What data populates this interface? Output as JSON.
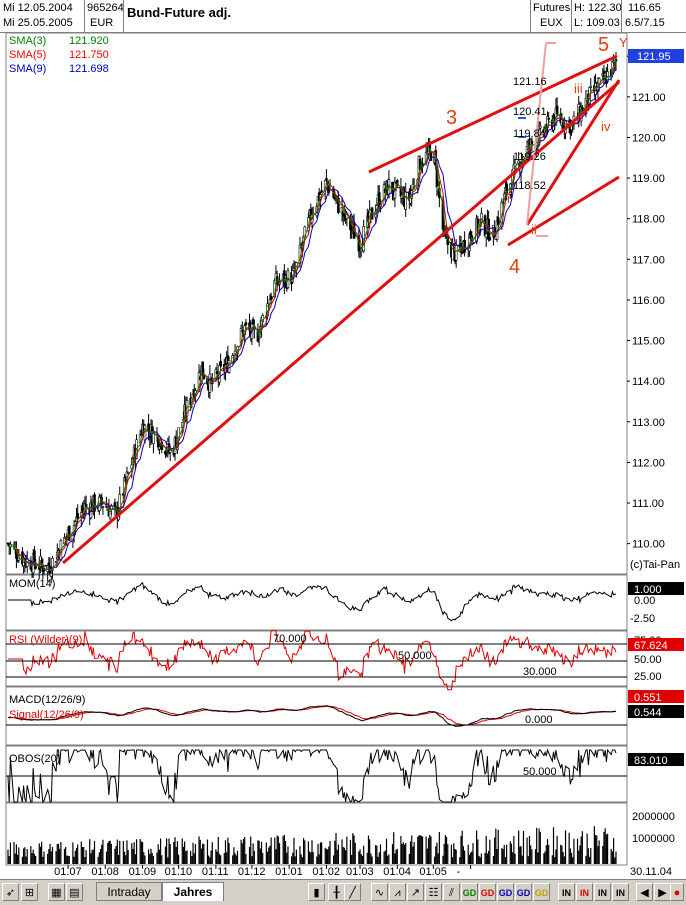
{
  "header": {
    "date1": "Mi 12.05.2004",
    "date2": "Mi 25.05.2005",
    "code": "965264",
    "currency": "EUR",
    "title": "Bund-Future adj.",
    "type": "Futures",
    "exchange": "EUX",
    "high": "H: 122.30",
    "low": "L: 109.03",
    "last": "116.65",
    "range": "6.5/7.15"
  },
  "legend": [
    {
      "name": "SMA(3)",
      "value": "121.920",
      "color": "#008000"
    },
    {
      "name": "SMA(5)",
      "value": "121.750",
      "color": "#ff0000"
    },
    {
      "name": "SMA(9)",
      "value": "121.698",
      "color": "#0000c0"
    }
  ],
  "copyright": "(c)Tai-Pan",
  "chart_data": [
    {
      "type": "candlestick",
      "title": "Bund-Future adj.",
      "ylim": [
        109.4,
        122.4
      ],
      "y_ticks": [
        "122.00",
        "121.00",
        "120.00",
        "119.00",
        "118.00",
        "117.00",
        "116.00",
        "115.00",
        "114.00",
        "113.00",
        "112.00",
        "111.00",
        "110.00"
      ],
      "last_price_label": "121.95",
      "x_ticks": [
        "01.07",
        "01.08",
        "01.09",
        "01.10",
        "01.11",
        "01.12",
        "01.01",
        "01.02",
        "01.03",
        "01.04",
        "01.05",
        "-"
      ],
      "x_end_label": "30.11.04",
      "close_series_approx": [
        {
          "x": "2004-05-12",
          "y": 110.0
        },
        {
          "x": "2004-05-26",
          "y": 109.6
        },
        {
          "x": "2004-06-15",
          "y": 109.4
        },
        {
          "x": "2004-06-30",
          "y": 110.2
        },
        {
          "x": "2004-07-15",
          "y": 110.9
        },
        {
          "x": "2004-07-30",
          "y": 111.0
        },
        {
          "x": "2004-08-10",
          "y": 110.7
        },
        {
          "x": "2004-08-20",
          "y": 111.7
        },
        {
          "x": "2004-09-01",
          "y": 112.9
        },
        {
          "x": "2004-09-15",
          "y": 112.6
        },
        {
          "x": "2004-09-25",
          "y": 112.2
        },
        {
          "x": "2004-10-05",
          "y": 113.1
        },
        {
          "x": "2004-10-20",
          "y": 114.3
        },
        {
          "x": "2004-10-28",
          "y": 113.9
        },
        {
          "x": "2004-11-10",
          "y": 114.4
        },
        {
          "x": "2004-11-25",
          "y": 115.3
        },
        {
          "x": "2004-12-05",
          "y": 115.1
        },
        {
          "x": "2004-12-20",
          "y": 116.4
        },
        {
          "x": "2005-01-05",
          "y": 116.6
        },
        {
          "x": "2005-01-20",
          "y": 118.2
        },
        {
          "x": "2005-02-01",
          "y": 118.9
        },
        {
          "x": "2005-02-15",
          "y": 118.1
        },
        {
          "x": "2005-03-01",
          "y": 117.4
        },
        {
          "x": "2005-03-15",
          "y": 118.4
        },
        {
          "x": "2005-03-25",
          "y": 118.8
        },
        {
          "x": "2005-04-10",
          "y": 118.4
        },
        {
          "x": "2005-04-20",
          "y": 119.4
        },
        {
          "x": "2005-05-01",
          "y": 119.7
        },
        {
          "x": "2005-05-10",
          "y": 117.5
        },
        {
          "x": "2005-05-20",
          "y": 117.1
        },
        {
          "x": "2005-06-01",
          "y": 117.6
        },
        {
          "x": "2005-06-10",
          "y": 117.9
        },
        {
          "x": "2005-06-20",
          "y": 117.6
        },
        {
          "x": "2005-07-01",
          "y": 118.7
        },
        {
          "x": "2005-07-15",
          "y": 119.6
        },
        {
          "x": "2005-07-28",
          "y": 120.0
        },
        {
          "x": "2005-08-10",
          "y": 120.5
        },
        {
          "x": "2005-08-25",
          "y": 120.3
        },
        {
          "x": "2005-09-05",
          "y": 120.9
        },
        {
          "x": "2005-09-20",
          "y": 121.4
        },
        {
          "x": "2005-10-01",
          "y": 121.9
        }
      ],
      "wave_labels": [
        "3",
        "4",
        "5",
        "Y",
        "i",
        "ii",
        "iii",
        "iv"
      ],
      "fib_levels": [
        "121.16",
        "120.41",
        "119.84",
        "119.26",
        "118.52"
      ]
    },
    {
      "type": "line",
      "title": "MOM(14)",
      "y_ticks": [
        "0.00",
        "-2.50"
      ],
      "last_value": "1.000"
    },
    {
      "type": "line",
      "title": "RSI (Wilder)(9)",
      "y_ticks": [
        "75.00",
        "50.00",
        "25.00"
      ],
      "levels": [
        "70.000",
        "50.000",
        "30.000"
      ],
      "last_value": "67.624"
    },
    {
      "type": "line",
      "title": "MACD(12/26/9)",
      "series": [
        {
          "name": "MACD(12/26/9)"
        },
        {
          "name": "Signal(12/26/9)"
        }
      ],
      "level": "0.000",
      "last_values": [
        "0.551",
        "0.544"
      ]
    },
    {
      "type": "line",
      "title": "OBOS(20)",
      "level": "50.000",
      "last_value": "83.010"
    },
    {
      "type": "bar",
      "title": "Volume",
      "y_ticks": [
        "2000000",
        "1000000"
      ]
    }
  ],
  "toolbar": {
    "tabs": [
      "Intraday",
      "Jahres"
    ],
    "buttons": [
      "GD",
      "GD",
      "GD",
      "GD",
      "GD",
      "IN",
      "IN",
      "IN",
      "IN"
    ]
  }
}
